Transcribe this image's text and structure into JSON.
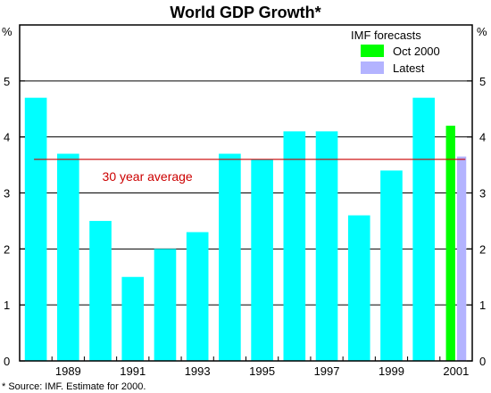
{
  "chart_data": {
    "type": "bar",
    "title": "World GDP Growth*",
    "y_unit_left": "%",
    "y_unit_right": "%",
    "ylim": [
      0,
      6
    ],
    "yticks": [
      0,
      1,
      2,
      3,
      4,
      5
    ],
    "grid": true,
    "x_tick_labels": [
      "1989",
      "1991",
      "1993",
      "1995",
      "1997",
      "1999",
      "2001"
    ],
    "x": [
      1988,
      1989,
      1990,
      1991,
      1992,
      1993,
      1994,
      1995,
      1996,
      1997,
      1998,
      1999,
      2000
    ],
    "values": [
      4.7,
      3.7,
      2.5,
      1.5,
      2.0,
      2.3,
      3.7,
      3.6,
      4.1,
      4.1,
      2.6,
      3.4,
      4.7
    ],
    "series_color": "#00ffff",
    "forecasts": {
      "year": 2001,
      "bars": [
        {
          "name": "Oct 2000",
          "value": 4.2,
          "color": "#00ff00"
        },
        {
          "name": "Latest",
          "value": 3.65,
          "color": "#b3b3ff"
        }
      ]
    },
    "legend": {
      "title": "IMF forecasts",
      "placement": "top-right",
      "entries": [
        {
          "name": "Oct 2000",
          "color": "#00ff00"
        },
        {
          "name": "Latest",
          "color": "#b3b3ff"
        }
      ]
    },
    "average_line": {
      "label": "30 year average",
      "value": 3.6,
      "color": "#cc0000"
    },
    "source_note": "* Source:  IMF. Estimate for 2000."
  }
}
